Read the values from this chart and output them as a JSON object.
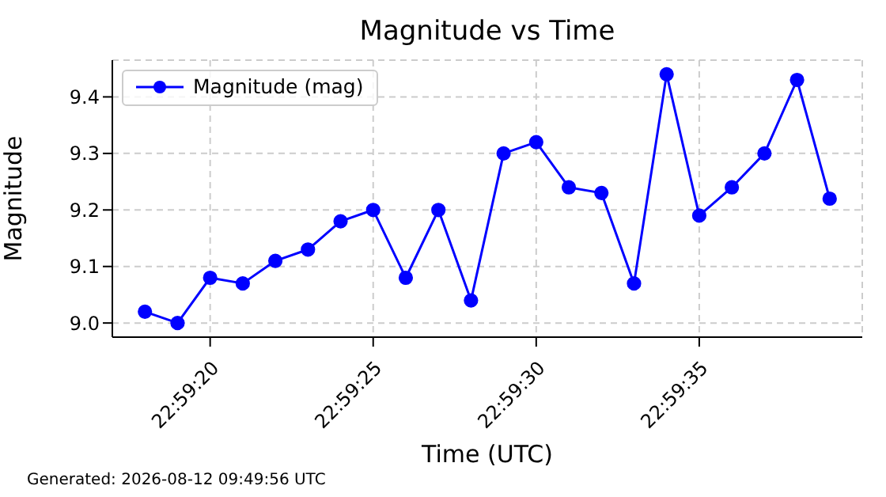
{
  "chart_data": {
    "type": "line",
    "title": "Magnitude vs Time",
    "xlabel": "Time (UTC)",
    "ylabel": "Magnitude",
    "annotations": [
      "Generated: 2026-08-12 09:49:56 UTC"
    ],
    "x": [
      "2026-08-12T22:59:18",
      "2026-08-12T22:59:19",
      "2026-08-12T22:59:20",
      "2026-08-12T22:59:21",
      "2026-08-12T22:59:22",
      "2026-08-12T22:59:23",
      "2026-08-12T22:59:24",
      "2026-08-12T22:59:25",
      "2026-08-12T22:59:26",
      "2026-08-12T22:59:27",
      "2026-08-12T22:59:28",
      "2026-08-12T22:59:29",
      "2026-08-12T22:59:30",
      "2026-08-12T22:59:31",
      "2026-08-12T22:59:32",
      "2026-08-12T22:59:33",
      "2026-08-12T22:59:34",
      "2026-08-12T22:59:35",
      "2026-08-12T22:59:36",
      "2026-08-12T22:59:37",
      "2026-08-12T22:59:38",
      "2026-08-12T22:59:39"
    ],
    "series": [
      {
        "name": "Magnitude (mag)",
        "color": "#0000ff",
        "values": [
          9.02,
          9.0,
          9.08,
          9.07,
          9.11,
          9.13,
          9.18,
          9.2,
          9.08,
          9.2,
          9.04,
          9.3,
          9.32,
          9.24,
          9.23,
          9.07,
          9.44,
          9.19,
          9.24,
          9.3,
          9.43,
          9.22
        ]
      }
    ],
    "xlim": [
      "2026-08-12T22:59:17",
      "2026-08-12T22:59:40"
    ],
    "xticks": [
      {
        "value": "2026-08-12T22:59:20",
        "label": "22:59:20"
      },
      {
        "value": "2026-08-12T22:59:25",
        "label": "22:59:25"
      },
      {
        "value": "2026-08-12T22:59:30",
        "label": "22:59:30"
      },
      {
        "value": "2026-08-12T22:59:35",
        "label": "22:59:35"
      }
    ],
    "ylim": [
      8.975,
      9.465
    ],
    "yticks": [
      {
        "value": 9.0,
        "label": "9.0"
      },
      9.1,
      9.2,
      9.3,
      {
        "value": 9.4,
        "label": "9.4"
      }
    ],
    "grid": true,
    "legend": "top left",
    "marker": "circle",
    "line_style": "solid"
  }
}
